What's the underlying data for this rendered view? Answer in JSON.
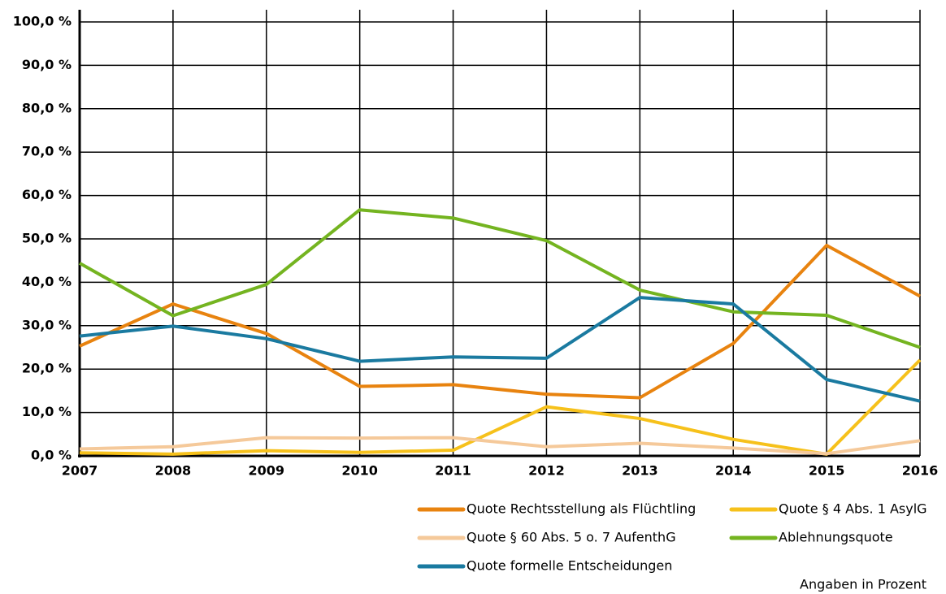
{
  "chart_data": {
    "type": "line",
    "categories": [
      "2007",
      "2008",
      "2009",
      "2010",
      "2011",
      "2012",
      "2013",
      "2014",
      "2015",
      "2016"
    ],
    "series": [
      {
        "name": "Quote Rechtsstellung als Flüchtling",
        "color": "#e8830f",
        "values": [
          25.3,
          35.0,
          28.2,
          16.0,
          16.4,
          14.2,
          13.4,
          25.9,
          48.5,
          36.8
        ]
      },
      {
        "name": "Quote § 4 Abs. 1 AsylG",
        "color": "#f6c11b",
        "values": [
          0.7,
          0.4,
          1.2,
          0.8,
          1.3,
          11.3,
          8.6,
          3.8,
          0.4,
          22.1
        ]
      },
      {
        "name": "Quote § 60 Abs. 5 o. 7 AufenthG",
        "color": "#f5c99a",
        "values": [
          1.6,
          2.1,
          4.2,
          4.1,
          4.2,
          2.1,
          2.9,
          1.8,
          0.5,
          3.5
        ]
      },
      {
        "name": "Ablehnungsquote",
        "color": "#74b420",
        "values": [
          44.4,
          32.3,
          39.5,
          56.7,
          54.8,
          49.6,
          38.2,
          33.2,
          32.4,
          25.0
        ]
      },
      {
        "name": "Quote formelle Entscheidungen",
        "color": "#1a7aa0",
        "values": [
          27.6,
          29.9,
          27.0,
          21.8,
          22.8,
          22.5,
          36.5,
          35.0,
          17.6,
          12.6
        ]
      }
    ],
    "ylim": [
      0,
      100
    ],
    "yticks": [
      {
        "value": 0,
        "label": "0,0 %"
      },
      {
        "value": 10,
        "label": "10,0 %"
      },
      {
        "value": 20,
        "label": "20,0 %"
      },
      {
        "value": 30,
        "label": "30,0 %"
      },
      {
        "value": 40,
        "label": "40,0 %"
      },
      {
        "value": 50,
        "label": "50,0 %"
      },
      {
        "value": 60,
        "label": "60,0 %"
      },
      {
        "value": 70,
        "label": "70,0 %"
      },
      {
        "value": 80,
        "label": "80,0 %"
      },
      {
        "value": 90,
        "label": "90,0 %"
      },
      {
        "value": 100,
        "label": "100,0 %"
      }
    ],
    "grid": true,
    "note": "Angaben in Prozent"
  }
}
